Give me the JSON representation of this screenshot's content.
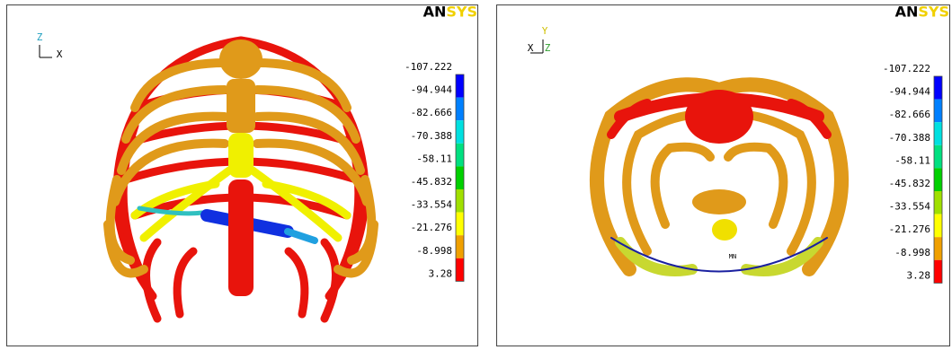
{
  "panels": [
    {
      "logo": [
        "AN",
        "SYS"
      ],
      "axes": [
        "Z",
        "X"
      ],
      "legend": {
        "labels": [
          "-107.222",
          "-94.944",
          "-82.666",
          "-70.388",
          "-58.11",
          "-45.832",
          "-33.554",
          "-21.276",
          "-8.998",
          "3.28"
        ],
        "colors": [
          "#0000ff",
          "#0080ff",
          "#00e0e0",
          "#00e080",
          "#00d000",
          "#a0e000",
          "#ffff00",
          "#f0a000",
          "#ff0000"
        ]
      }
    },
    {
      "logo": [
        "AN",
        "SYS"
      ],
      "axes": [
        "Y",
        "X",
        "Z"
      ],
      "marker": "MN",
      "legend": {
        "labels": [
          "-107.222",
          "-94.944",
          "-82.666",
          "-70.388",
          "-58.11",
          "-45.832",
          "-33.554",
          "-21.276",
          "-8.998",
          "3.28"
        ],
        "colors": [
          "#0000ff",
          "#0080ff",
          "#00e0e0",
          "#00e080",
          "#00d000",
          "#a0e000",
          "#ffff00",
          "#f0a000",
          "#ff0000"
        ]
      }
    }
  ]
}
